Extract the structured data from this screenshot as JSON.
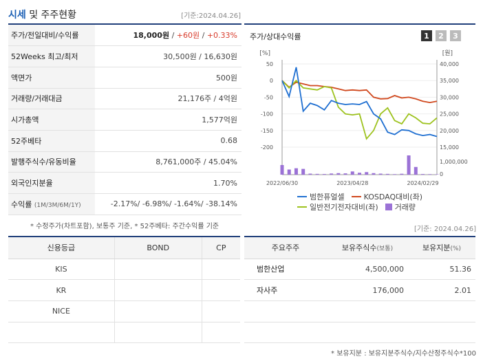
{
  "header": {
    "title_part1": "시세",
    "title_part2": " 및 주주현황",
    "date": "[기준:2024.04.26]"
  },
  "info_rows": [
    {
      "key": "주가/전일대비/수익률",
      "price": "18,000원",
      "sep1": " / ",
      "change": "+60원",
      "sep2": " / ",
      "pct": "+0.33%"
    },
    {
      "key": "52Weeks 최고/최저",
      "value": "30,500원 / 16,630원"
    },
    {
      "key": "액면가",
      "value": "500원"
    },
    {
      "key": "거래량/거래대금",
      "value": "21,176주 / 4억원"
    },
    {
      "key": "시가총액",
      "value": "1,577억원"
    },
    {
      "key": "52주베타",
      "value": "0.68"
    },
    {
      "key": "발행주식수/유동비율",
      "value": "8,761,000주 / 45.04%"
    },
    {
      "key": "외국인지분율",
      "value": "1.70%"
    },
    {
      "key": "수익률",
      "key_sub": "(1M/3M/6M/1Y)",
      "value": "-2.17%/ -6.98%/ -1.64%/ -38.14%"
    }
  ],
  "note1": "* 수정주가(차트포함), 보통주 기준, * 52주베타: 주간수익률 기준",
  "chart": {
    "title": "주가/상대수익률",
    "tabs": [
      "1",
      "2",
      "3"
    ],
    "left_unit": "[%]",
    "right_unit": "[원]",
    "left_ticks": [
      "50",
      "0",
      "-50",
      "-100",
      "-150",
      "-200"
    ],
    "right_ticks": [
      "40,000",
      "35,000",
      "30,000",
      "25,000",
      "20,000",
      "15,000"
    ],
    "volume_tick": "1,000,000",
    "volume_zero": "0",
    "x_labels": [
      "2022/06/30",
      "2023/04/28",
      "2024/02/29"
    ],
    "colors": {
      "stock": "#1f6fd1",
      "kosdaq": "#d0471c",
      "sector": "#9dc21d",
      "volume": "#9b72d6"
    }
  },
  "chart_data": {
    "type": "line",
    "title": "주가/상대수익률",
    "x": [
      "2022/06",
      "2022/07",
      "2022/08",
      "2022/09",
      "2022/10",
      "2022/11",
      "2022/12",
      "2023/01",
      "2023/02",
      "2023/03",
      "2023/04",
      "2023/05",
      "2023/06",
      "2023/07",
      "2023/08",
      "2023/09",
      "2023/10",
      "2023/11",
      "2023/12",
      "2024/01",
      "2024/02",
      "2024/03",
      "2024/04"
    ],
    "ylim": [
      -200,
      50
    ],
    "y2lim": [
      15000,
      40000
    ],
    "series": [
      {
        "name": "범한퓨얼셀",
        "axis": "left",
        "values": [
          0,
          -48,
          40,
          -92,
          -68,
          -75,
          -88,
          -60,
          -68,
          -72,
          -70,
          -72,
          -63,
          -100,
          -115,
          -155,
          -162,
          -148,
          -150,
          -160,
          -165,
          -162,
          -168
        ]
      },
      {
        "name": "KOSDAQ대비(좌)",
        "axis": "left",
        "values": [
          0,
          -20,
          -5,
          -10,
          -15,
          -15,
          -18,
          -20,
          -25,
          -30,
          -28,
          -30,
          -28,
          -50,
          -55,
          -54,
          -45,
          -52,
          -50,
          -55,
          -62,
          -66,
          -62
        ]
      },
      {
        "name": "일반전기전자대비(좌)",
        "axis": "left",
        "values": [
          0,
          -22,
          0,
          -22,
          -25,
          -28,
          -18,
          -22,
          -80,
          -100,
          -103,
          -100,
          -175,
          -150,
          -100,
          -82,
          -120,
          -130,
          -100,
          -112,
          -128,
          -130,
          -112
        ]
      },
      {
        "name": "거래량",
        "axis": "volume",
        "values": [
          750000,
          400000,
          500000,
          450000,
          80000,
          60000,
          50000,
          90000,
          120000,
          100000,
          250000,
          150000,
          200000,
          120000,
          80000,
          60000,
          40000,
          70000,
          1500000,
          600000,
          50000,
          40000,
          30000
        ]
      }
    ],
    "volume_ylim": [
      0,
      1500000
    ]
  },
  "legend": [
    "범한퓨얼셀",
    "KOSDAQ대비(좌)",
    "일반전기전자대비(좌)",
    "거래량"
  ],
  "date2": "[기준: 2024.04.26]",
  "credit": {
    "headers": [
      "신용등급",
      "BOND",
      "CP"
    ],
    "rows": [
      [
        "KIS",
        "",
        ""
      ],
      [
        "KR",
        "",
        ""
      ],
      [
        "NICE",
        "",
        ""
      ],
      [
        "",
        "",
        ""
      ]
    ]
  },
  "holders": {
    "headers": [
      "주요주주",
      "보유주식수",
      "(보통)",
      "보유지분",
      "(%)"
    ],
    "rows": [
      {
        "name": "범한산업",
        "shares": "4,500,000",
        "pct": "51.36"
      },
      {
        "name": "자사주",
        "shares": "176,000",
        "pct": "2.01"
      },
      {
        "name": "",
        "shares": "",
        "pct": ""
      },
      {
        "name": "",
        "shares": "",
        "pct": ""
      }
    ]
  },
  "note2": "* 보유지분 : 보유지분주식수/지수산정주식수*100"
}
